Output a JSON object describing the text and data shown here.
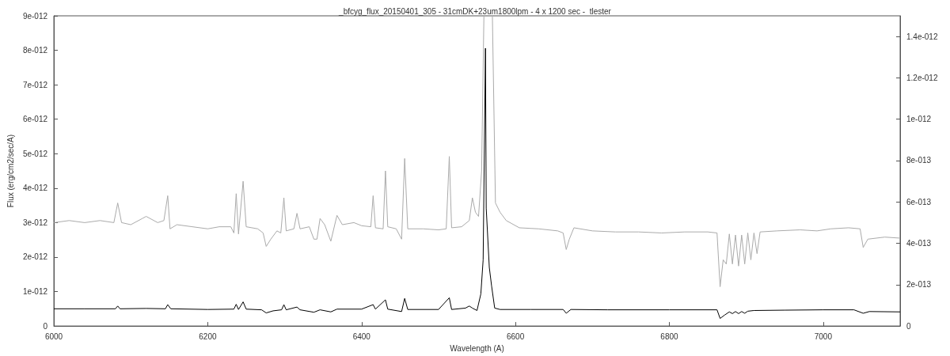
{
  "chart_data": {
    "type": "line",
    "title": "_bfcyg_flux_20150401_305 - 31cmDK+23um1800lpm - 4 x 1200 sec -  tlester",
    "xlabel": "Wavelength (A)",
    "ylabel": "Flux (erg/cm2/sec/A)",
    "xlim": [
      6000,
      7100
    ],
    "xticks": [
      6000,
      6200,
      6400,
      6600,
      6800,
      7000
    ],
    "ylim": [
      0,
      9e-12
    ],
    "yticks": [
      0,
      {
        "value": 1e-12,
        "label": "1e-012"
      },
      {
        "value": 2e-12,
        "label": "2e-012"
      },
      {
        "value": 3e-12,
        "label": "3e-012"
      },
      {
        "value": 4e-12,
        "label": "4e-012"
      },
      {
        "value": 5e-12,
        "label": "5e-012"
      },
      {
        "value": 6e-12,
        "label": "6e-012"
      },
      {
        "value": 7e-12,
        "label": "7e-012"
      },
      {
        "value": 8e-12,
        "label": "8e-012"
      },
      {
        "value": 9e-12,
        "label": "9e-012"
      }
    ],
    "y2lim": [
      0,
      1.5e-12
    ],
    "y2ticks": [
      0,
      {
        "value": 2e-13,
        "label": "2e-013"
      },
      {
        "value": 4e-13,
        "label": "4e-013"
      },
      {
        "value": 6e-13,
        "label": "6e-013"
      },
      {
        "value": 8e-13,
        "label": "8e-013"
      },
      {
        "value": 1e-12,
        "label": "1e-012"
      },
      {
        "value": 1.2e-12,
        "label": "1.2e-012"
      },
      {
        "value": 1.4e-12,
        "label": "1.4e-012"
      }
    ],
    "series": [
      {
        "color": "#aaaaaa",
        "axis": "y2",
        "x": [
          6000,
          6020,
          6040,
          6060,
          6078,
          6083,
          6088,
          6100,
          6115,
          6120,
          6135,
          6143,
          6148,
          6151,
          6160,
          6180,
          6200,
          6215,
          6230,
          6234,
          6237,
          6240,
          6246,
          6250,
          6265,
          6272,
          6276,
          6282,
          6290,
          6295,
          6299,
          6302,
          6312,
          6316,
          6320,
          6332,
          6338,
          6342,
          6346,
          6352,
          6360,
          6368,
          6375,
          6390,
          6400,
          6412,
          6415,
          6418,
          6428,
          6431,
          6434,
          6445,
          6452,
          6456,
          6460,
          6480,
          6500,
          6510,
          6514,
          6517,
          6530,
          6540,
          6544,
          6548,
          6552,
          6556,
          6559,
          6570,
          6574,
          6580,
          6588,
          6605,
          6630,
          6655,
          6662,
          6666,
          6670,
          6676,
          6700,
          6730,
          6760,
          6790,
          6820,
          6850,
          6862,
          6866,
          6870,
          6874,
          6878,
          6882,
          6886,
          6890,
          6894,
          6898,
          6902,
          6906,
          6910,
          6914,
          6918,
          6940,
          6970,
          6992,
          7010,
          7033,
          7048,
          7052,
          7058,
          7080,
          7100
        ],
        "values": [
          5e-13,
          5.1e-13,
          5e-13,
          5.1e-13,
          5e-13,
          5.95e-13,
          5e-13,
          4.9e-13,
          5.2e-13,
          5.3e-13,
          5e-13,
          5.1e-13,
          6.3e-13,
          4.7e-13,
          4.9e-13,
          4.8e-13,
          4.7e-13,
          4.8e-13,
          4.8e-13,
          4.5e-13,
          6.4e-13,
          4.45e-13,
          7e-13,
          4.8e-13,
          4.7e-13,
          4.5e-13,
          3.85e-13,
          4.2e-13,
          4.6e-13,
          4.5e-13,
          6.2e-13,
          4.6e-13,
          4.7e-13,
          5.45e-13,
          4.7e-13,
          4.8e-13,
          4.2e-13,
          4.2e-13,
          5.2e-13,
          4.9e-13,
          4.1e-13,
          5.35e-13,
          4.9e-13,
          5e-13,
          4.85e-13,
          4.8e-13,
          6.3e-13,
          4.75e-13,
          4.7e-13,
          7.5e-13,
          4.8e-13,
          4.7e-13,
          4.2e-13,
          8.1e-13,
          4.7e-13,
          4.7e-13,
          4.65e-13,
          4.7e-13,
          8.2e-13,
          4.75e-13,
          4.8e-13,
          5.1e-13,
          6.2e-13,
          5.5e-13,
          5.3e-13,
          7.5e-13,
          1.5e-12,
          1.5e-12,
          5.95e-13,
          5.5e-13,
          5.1e-13,
          4.75e-13,
          4.7e-13,
          4.6e-13,
          4.5e-13,
          3.7e-13,
          4.2e-13,
          4.75e-13,
          4.6e-13,
          4.55e-13,
          4.55e-13,
          4.5e-13,
          4.55e-13,
          4.55e-13,
          4.5e-13,
          1.9e-13,
          3.2e-13,
          3e-13,
          4.45e-13,
          3e-13,
          4.4e-13,
          2.9e-13,
          4.4e-13,
          3e-13,
          4.5e-13,
          3.2e-13,
          4.5e-13,
          3.5e-13,
          4.55e-13,
          4.6e-13,
          4.65e-13,
          4.6e-13,
          4.7e-13,
          4.75e-13,
          4.7e-13,
          3.8e-13,
          4.2e-13,
          4.3e-13,
          4.25e-13
        ]
      },
      {
        "color": "#000000",
        "x": [
          6000,
          6040,
          6080,
          6083,
          6086,
          6120,
          6145,
          6148,
          6152,
          6200,
          6234,
          6237,
          6240,
          6246,
          6250,
          6270,
          6276,
          6285,
          6296,
          6299,
          6302,
          6316,
          6320,
          6338,
          6346,
          6360,
          6368,
          6400,
          6415,
          6418,
          6431,
          6434,
          6452,
          6456,
          6460,
          6500,
          6514,
          6517,
          6535,
          6540,
          6544,
          6550,
          6555,
          6558,
          6561,
          6562,
          6566,
          6569,
          6573,
          6580,
          6620,
          6662,
          6666,
          6672,
          6720,
          6800,
          6862,
          6866,
          6872,
          6878,
          6882,
          6886,
          6890,
          6894,
          6898,
          6902,
          6910,
          6950,
          7000,
          7040,
          7052,
          7060,
          7100
        ],
        "values": [
          5e-13,
          5e-13,
          5e-13,
          5.8e-13,
          5e-13,
          5.1e-13,
          5e-13,
          6.2e-13,
          5e-13,
          4.8e-13,
          4.9e-13,
          6.3e-13,
          4.8e-13,
          7e-13,
          4.9e-13,
          4.7e-13,
          3.8e-13,
          4.4e-13,
          4.7e-13,
          6.2e-13,
          4.7e-13,
          5.5e-13,
          4.7e-13,
          4e-13,
          4.7e-13,
          4.1e-13,
          4.9e-13,
          4.9e-13,
          6.2e-13,
          4.9e-13,
          7.6e-13,
          4.9e-13,
          4.2e-13,
          8e-13,
          4.8e-13,
          4.8e-13,
          8.2e-13,
          4.8e-13,
          5.2e-13,
          5.8e-13,
          5.2e-13,
          4.5e-13,
          9.3e-13,
          1.92e-12,
          8.06e-12,
          3.42e-12,
          1.7e-12,
          1.16e-12,
          5.2e-13,
          4.8e-13,
          4.8e-13,
          4.8e-13,
          3.7e-13,
          4.8e-13,
          4.7e-13,
          4.7e-13,
          4.7e-13,
          2.2e-13,
          3.2e-13,
          4.1e-13,
          3.6e-13,
          4.2e-13,
          3.6e-13,
          4.2e-13,
          3.7e-13,
          4.3e-13,
          4.5e-13,
          4.6e-13,
          4.7e-13,
          4.7e-13,
          3.7e-13,
          4.2e-13,
          4.1e-13
        ]
      }
    ]
  }
}
